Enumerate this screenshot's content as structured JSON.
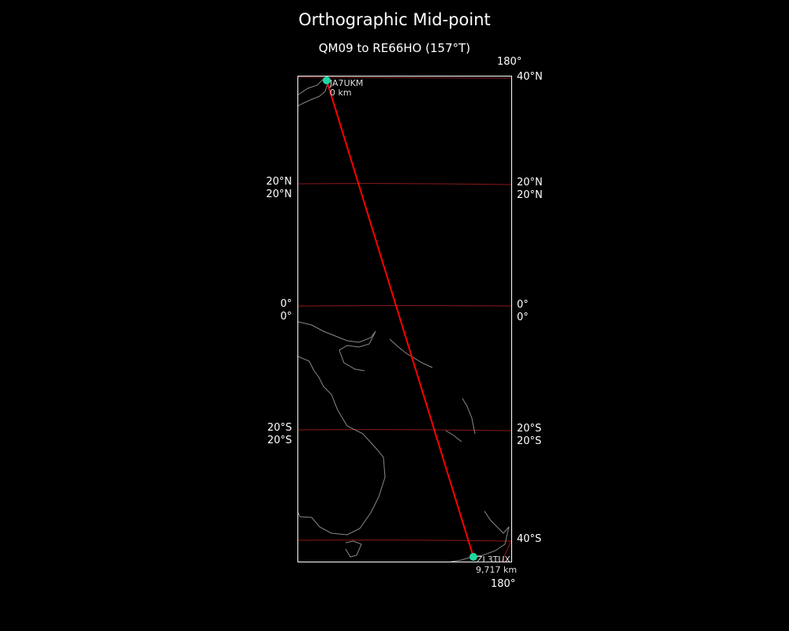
{
  "title": "Orthographic Mid-point",
  "subtitle": "QM09 to RE66HO (157°T)",
  "colors": {
    "background": "#000000",
    "path": "#ff0000",
    "graticule": "#8b1a1a",
    "coast": "#888888",
    "station": "#1fd8a0",
    "frame": "#ffffff"
  },
  "labels": {
    "top_meridian": "180°",
    "bottom_meridian": "180°",
    "left": [
      "20°N",
      "20°N",
      "0°",
      "0°",
      "20°S",
      "20°S"
    ],
    "right": [
      "40°N",
      "20°N",
      "20°N",
      "0°",
      "0°",
      "20°S",
      "20°S",
      "40°S"
    ]
  },
  "stations": [
    {
      "call": "JA7UKM",
      "distance": "0 km"
    },
    {
      "call": "ZL3TUX",
      "distance": "9,717 km"
    }
  ]
}
